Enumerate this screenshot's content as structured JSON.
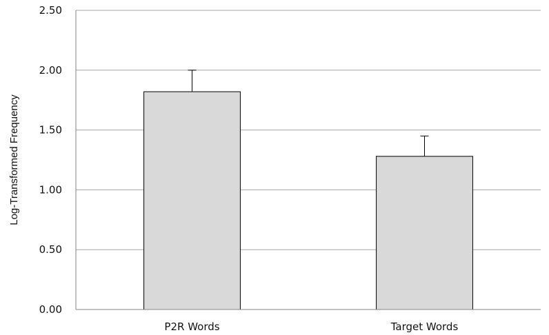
{
  "chart_data": {
    "type": "bar",
    "title": "",
    "xlabel": "",
    "ylabel": "Log-Transformed Frequency",
    "categories": [
      "P2R Words",
      "Target Words"
    ],
    "values": [
      1.82,
      1.28
    ],
    "error_bars": [
      0.18,
      0.17
    ],
    "ylim": [
      0,
      2.5
    ],
    "yticks": [
      "0.00",
      "0.50",
      "1.00",
      "1.50",
      "2.00",
      "2.50"
    ],
    "grid": true,
    "legend": "none",
    "bar_fill": "#d9d9d9",
    "bar_stroke": "#000000",
    "grid_color": "#a6a6a6"
  }
}
